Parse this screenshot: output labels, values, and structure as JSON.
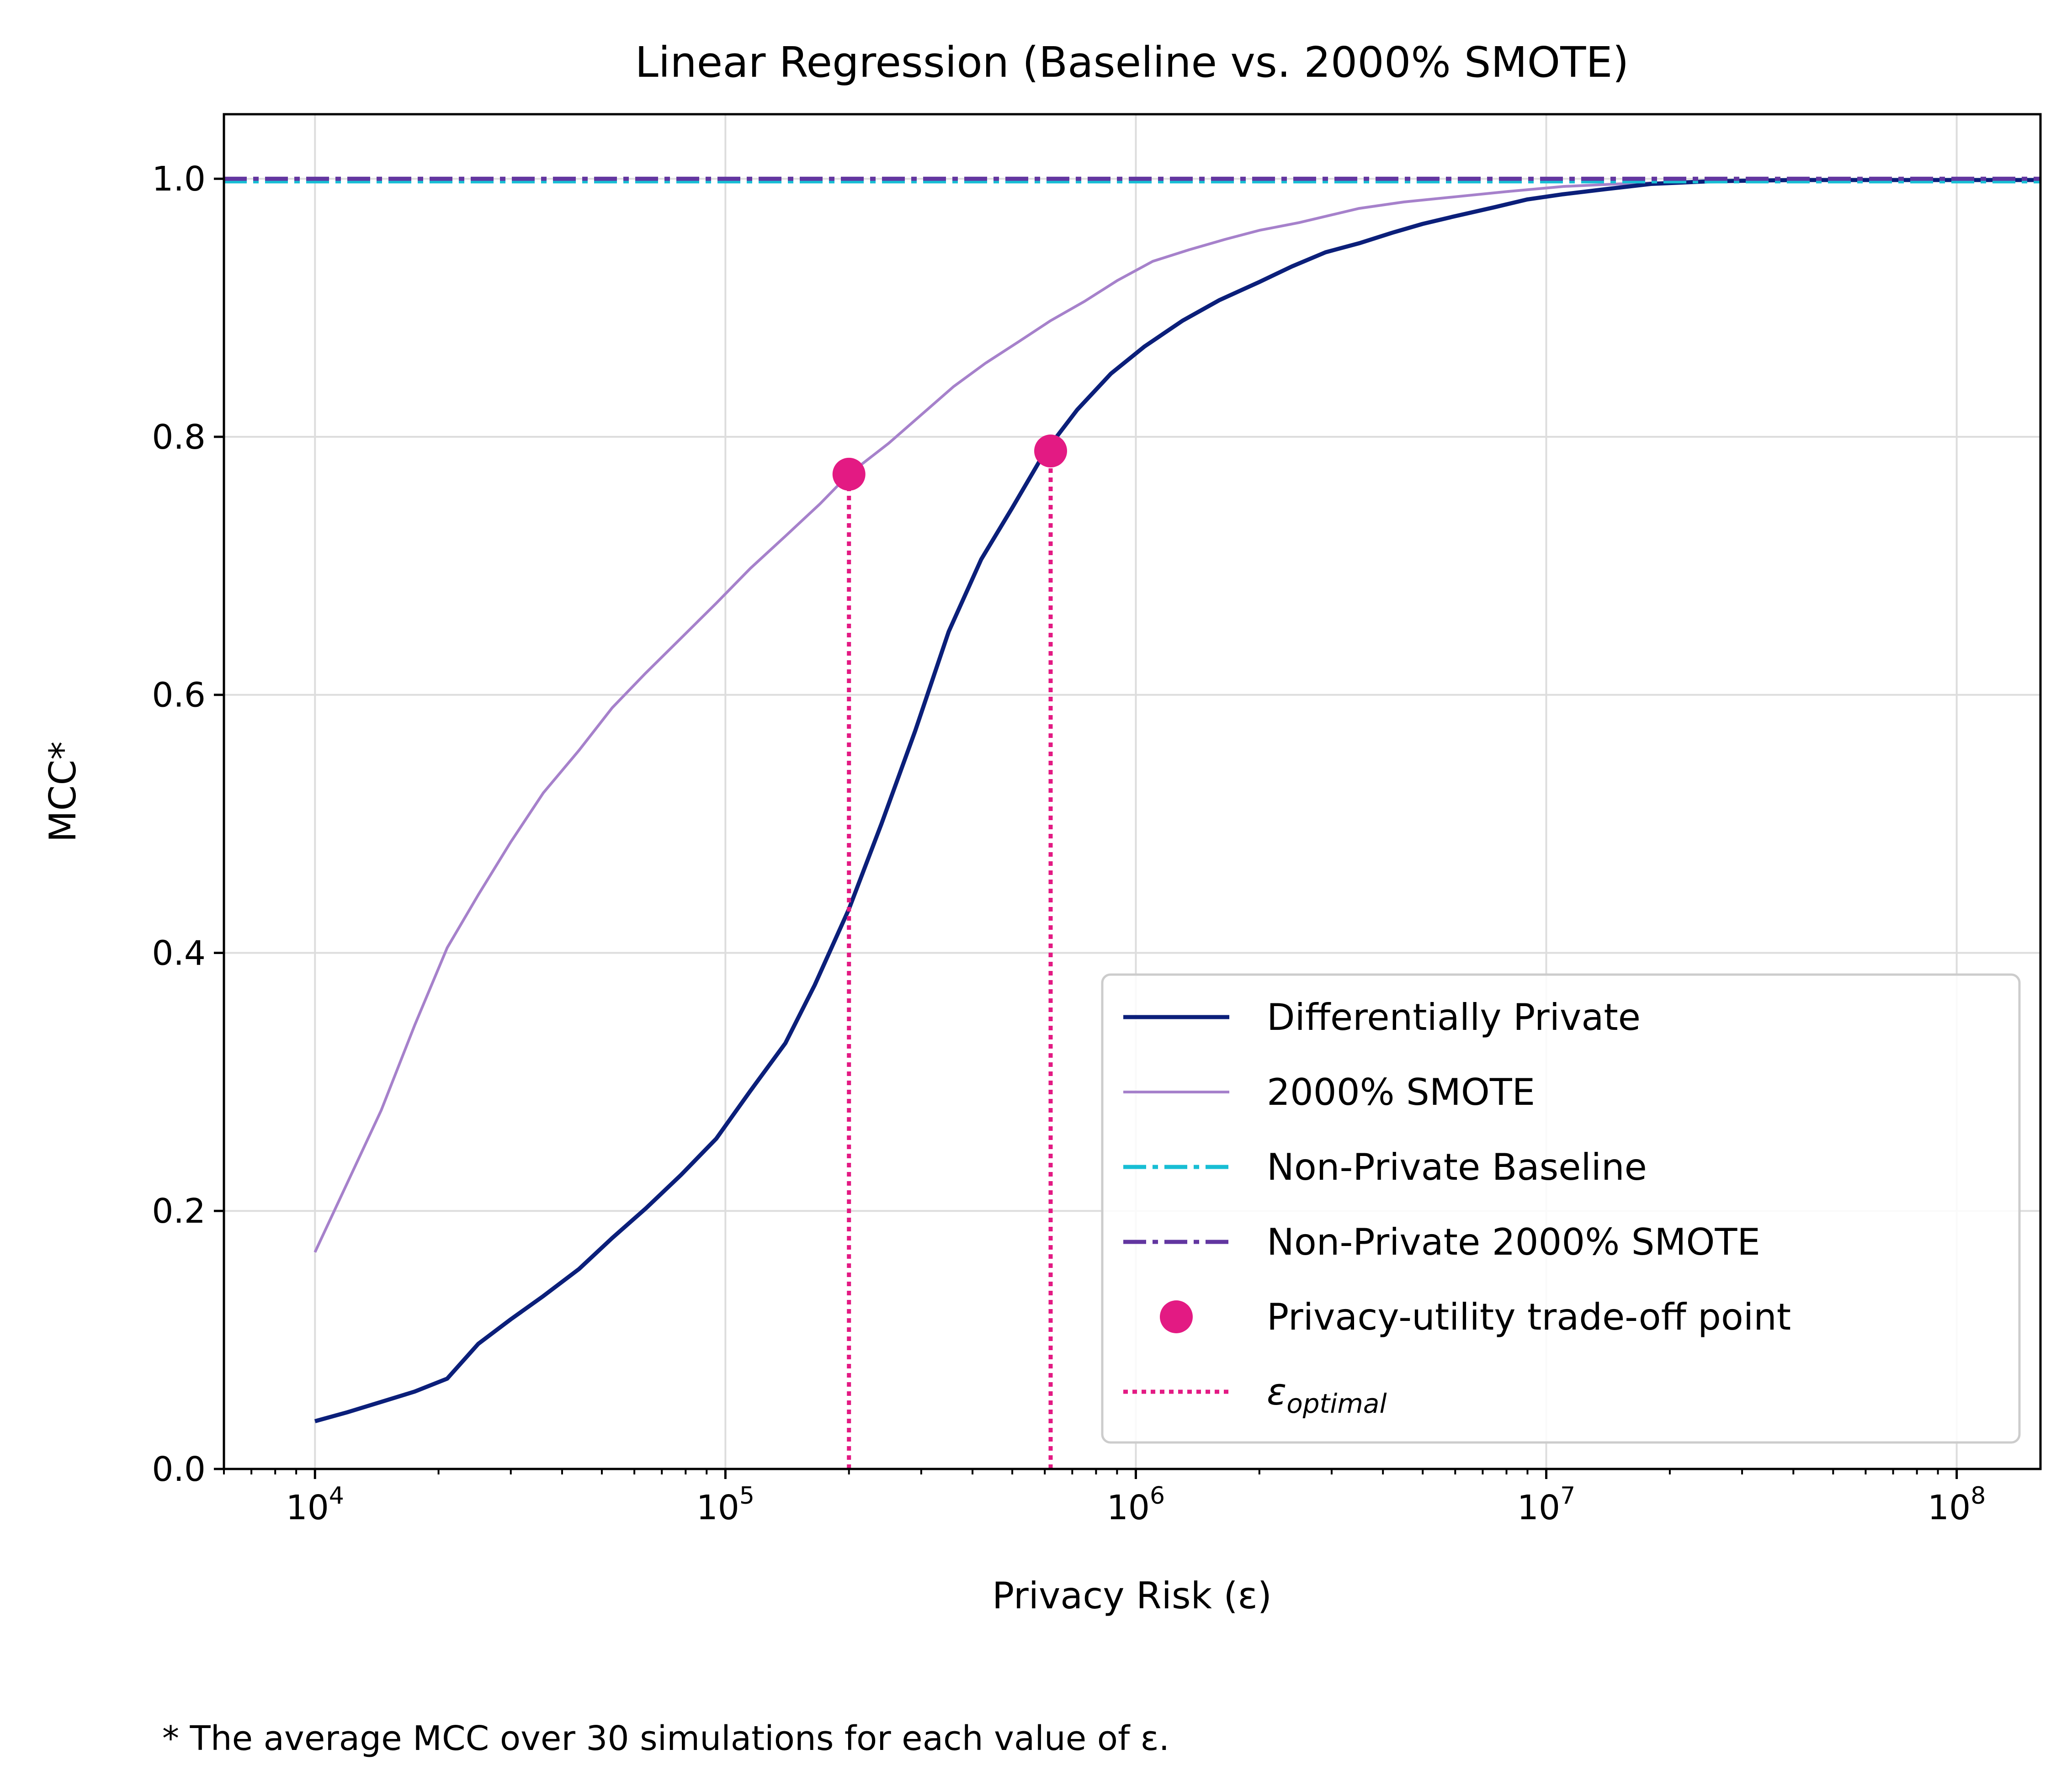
{
  "chart_data": {
    "type": "line",
    "title": "Linear Regression (Baseline vs. 2000% SMOTE)",
    "xlabel": "Privacy Risk (ε)",
    "ylabel": "MCC*",
    "xscale": "log",
    "xlim": [
      6000,
      160000000
    ],
    "ylim": [
      0,
      1.05
    ],
    "grid": true,
    "x_ticks": [
      {
        "value": 10000,
        "base": "10",
        "exp": "4"
      },
      {
        "value": 100000,
        "base": "10",
        "exp": "5"
      },
      {
        "value": 1000000,
        "base": "10",
        "exp": "6"
      },
      {
        "value": 10000000,
        "base": "10",
        "exp": "7"
      },
      {
        "value": 100000000,
        "base": "10",
        "exp": "8"
      }
    ],
    "y_ticks": [
      {
        "value": 0.0,
        "label": "0.0"
      },
      {
        "value": 0.2,
        "label": "0.2"
      },
      {
        "value": 0.4,
        "label": "0.4"
      },
      {
        "value": 0.6,
        "label": "0.6"
      },
      {
        "value": 0.8,
        "label": "0.8"
      },
      {
        "value": 1.0,
        "label": "1.0"
      }
    ],
    "series": [
      {
        "name": "Differentially Private",
        "style": "solid",
        "color": "#0b1f7a",
        "x": [
          10000,
          12000,
          14500,
          17500,
          21000,
          25000,
          30000,
          36000,
          44000,
          53000,
          64000,
          78000,
          95000,
          115000,
          140000,
          165000,
          200000,
          240000,
          290000,
          350000,
          420000,
          500000,
          600000,
          720000,
          870000,
          1050000,
          1300000,
          1600000,
          2000000,
          2400000,
          2900000,
          3500000,
          4200000,
          5000000,
          6000000,
          7500000,
          9000000,
          11000000,
          14000000,
          18000000,
          25000000,
          40000000,
          70000000,
          100000000,
          160000000
        ],
        "y": [
          0.037,
          0.044,
          0.052,
          0.06,
          0.07,
          0.097,
          0.116,
          0.134,
          0.155,
          0.179,
          0.202,
          0.228,
          0.256,
          0.293,
          0.33,
          0.375,
          0.434,
          0.5,
          0.572,
          0.649,
          0.705,
          0.745,
          0.788,
          0.821,
          0.849,
          0.87,
          0.89,
          0.906,
          0.92,
          0.932,
          0.943,
          0.95,
          0.958,
          0.965,
          0.971,
          0.978,
          0.984,
          0.988,
          0.992,
          0.996,
          0.998,
          0.999,
          0.999,
          0.999,
          0.999
        ]
      },
      {
        "name": "2000% SMOTE",
        "style": "solid",
        "color": "#a681cb",
        "x": [
          10000,
          12000,
          14500,
          17500,
          21000,
          25000,
          30000,
          36000,
          44000,
          53000,
          64000,
          78000,
          95000,
          115000,
          140000,
          170000,
          200000,
          250000,
          300000,
          360000,
          430000,
          520000,
          620000,
          750000,
          900000,
          1100000,
          1350000,
          1650000,
          2000000,
          2500000,
          3000000,
          3500000,
          4500000,
          6000000,
          8000000,
          11000000,
          15000000,
          25000000,
          50000000,
          100000000,
          160000000
        ],
        "y": [
          0.168,
          0.222,
          0.278,
          0.344,
          0.404,
          0.445,
          0.486,
          0.524,
          0.557,
          0.59,
          0.617,
          0.644,
          0.671,
          0.698,
          0.723,
          0.748,
          0.771,
          0.795,
          0.817,
          0.839,
          0.857,
          0.874,
          0.89,
          0.905,
          0.921,
          0.936,
          0.945,
          0.953,
          0.96,
          0.966,
          0.972,
          0.977,
          0.982,
          0.986,
          0.99,
          0.994,
          0.996,
          0.998,
          0.999,
          0.999,
          0.999
        ]
      },
      {
        "name": "Non-Private Baseline",
        "style": "dashdot",
        "color": "#17bed4",
        "value": 0.998
      },
      {
        "name": "Non-Private 2000% SMOTE",
        "style": "dashdot",
        "color": "#6236a0",
        "value": 1.0
      }
    ],
    "tradeoff_points": {
      "name": "Privacy-utility trade-off point",
      "color": "#e31a83",
      "points": [
        {
          "x": 200000,
          "y": 0.771
        },
        {
          "x": 620000,
          "y": 0.789
        }
      ]
    },
    "epsilon_optimal": {
      "symbol": "ε",
      "subscript": "optimal",
      "style": "dotted",
      "color": "#e31a83",
      "x": [
        200000,
        620000
      ]
    },
    "legend": {
      "placement": "lower-right"
    }
  },
  "footnote": "* The average MCC over 30 simulations for each value of ε."
}
